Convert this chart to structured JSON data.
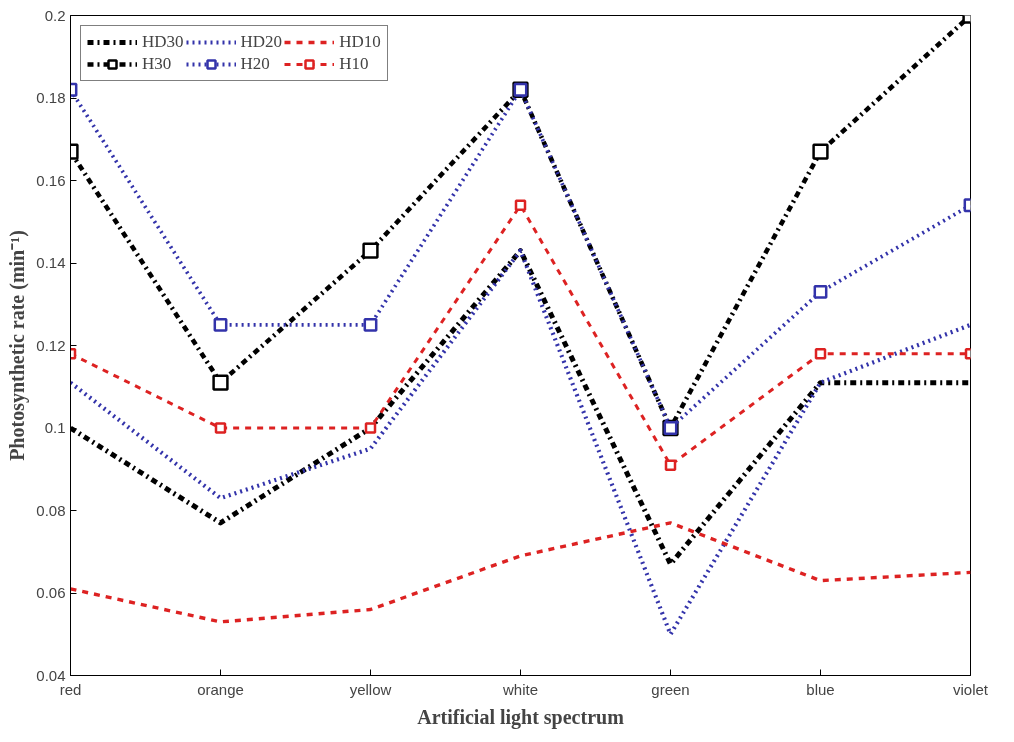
{
  "chart_data": {
    "type": "line",
    "xlabel": "Artificial light spectrum",
    "ylabel": "Photosynthetic rate (min⁻¹)",
    "categories": [
      "red",
      "orange",
      "yellow",
      "white",
      "green",
      "blue",
      "violet"
    ],
    "ylim": [
      0.04,
      0.2
    ],
    "yticks": [
      0.04,
      0.06,
      0.08,
      0.1,
      0.12,
      0.14,
      0.16,
      0.18,
      0.2
    ],
    "grid": false,
    "legend": "top left",
    "series": [
      {
        "name": "HD30",
        "color": "#000000",
        "line_style": "dashdot",
        "marker": "none",
        "values": [
          0.1,
          0.077,
          0.1,
          0.143,
          0.067,
          0.111,
          0.111
        ]
      },
      {
        "name": "H30",
        "color": "#000000",
        "line_style": "dashdot",
        "marker": "square",
        "values": [
          0.167,
          0.111,
          0.143,
          0.182,
          0.1,
          0.167,
          0.2
        ]
      },
      {
        "name": "HD20",
        "color": "#3333aa",
        "line_style": "dotted",
        "marker": "none",
        "values": [
          0.111,
          0.083,
          0.095,
          0.143,
          0.05,
          0.111,
          0.125
        ]
      },
      {
        "name": "H20",
        "color": "#3333aa",
        "line_style": "dotted",
        "marker": "square",
        "values": [
          0.182,
          0.125,
          0.125,
          0.182,
          0.1,
          0.133,
          0.154
        ]
      },
      {
        "name": "HD10",
        "color": "#dd2222",
        "line_style": "dashed",
        "marker": "none",
        "values": [
          0.061,
          0.053,
          0.056,
          0.069,
          0.077,
          0.063,
          0.065
        ]
      },
      {
        "name": "H10",
        "color": "#dd2222",
        "line_style": "dashed",
        "marker": "square",
        "values": [
          0.118,
          0.1,
          0.1,
          0.154,
          0.091,
          0.118,
          0.118
        ]
      }
    ]
  }
}
